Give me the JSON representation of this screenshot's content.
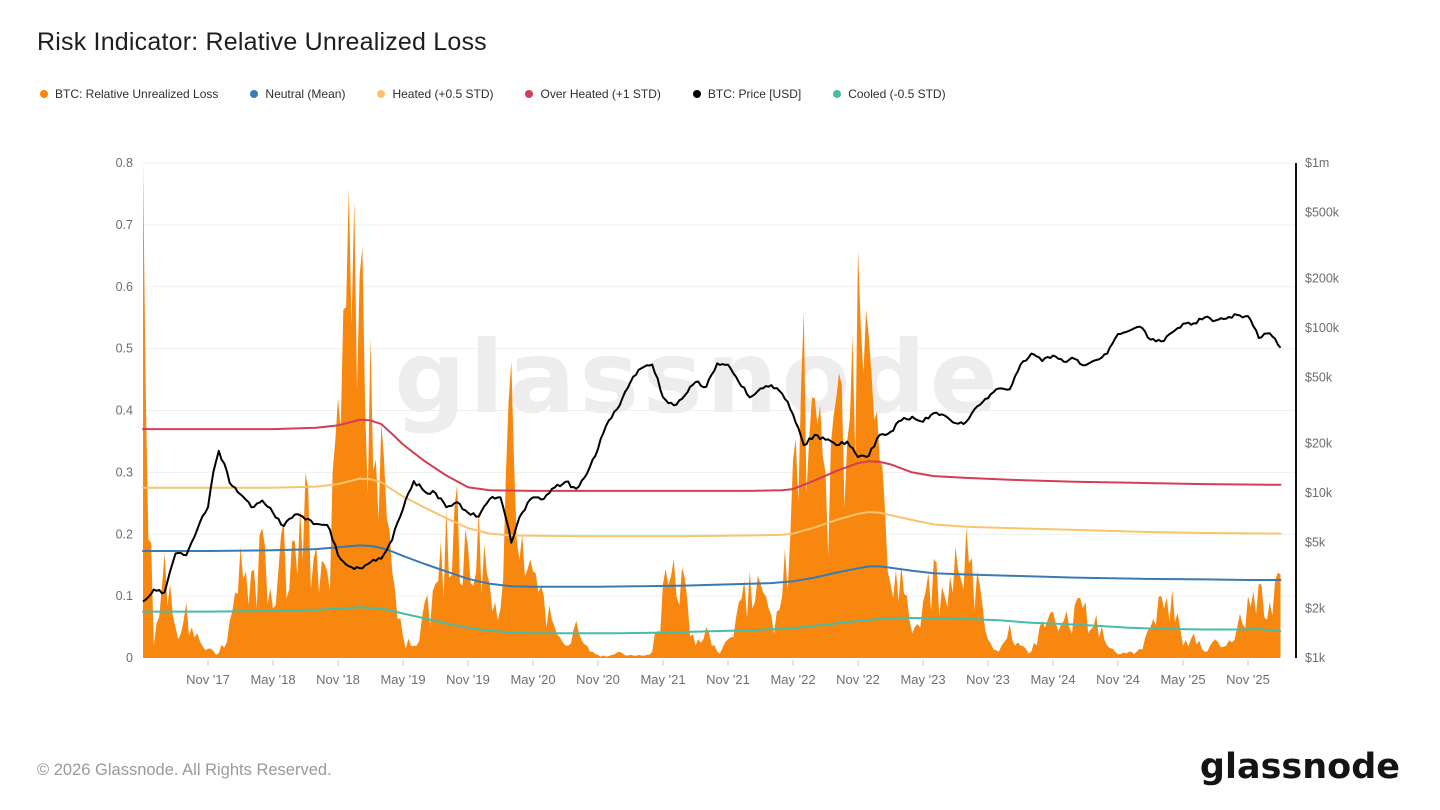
{
  "title": "Risk Indicator: Relative Unrealized Loss",
  "watermark": "glassnode",
  "footer": {
    "copyright": "© 2026 Glassnode. All Rights Reserved.",
    "brand": "glassnode"
  },
  "legend": [
    {
      "label": "BTC: Relative Unrealized Loss",
      "color": "#f7870e"
    },
    {
      "label": "Neutral (Mean)",
      "color": "#3a7ab2"
    },
    {
      "label": "Heated (+0.5 STD)",
      "color": "#f9c46d"
    },
    {
      "label": "Over Heated (+1 STD)",
      "color": "#d23e54"
    },
    {
      "label": "BTC: Price [USD]",
      "color": "#000000"
    },
    {
      "label": "Cooled (-0.5 STD)",
      "color": "#48bcab"
    }
  ],
  "chart_data": {
    "type": "area",
    "x_start": "2017-05",
    "x_step_months": 1,
    "x_points": 106,
    "x_tick_month_indices": [
      6,
      12,
      18,
      24,
      30,
      36,
      42,
      48,
      54,
      60,
      66,
      72,
      78,
      84,
      90,
      96,
      102
    ],
    "x_tick_labels": [
      "Nov '17",
      "May '18",
      "Nov '18",
      "May '19",
      "Nov '19",
      "May '20",
      "Nov '20",
      "May '21",
      "Nov '21",
      "May '22",
      "Nov '22",
      "May '23",
      "Nov '23",
      "May '24",
      "Nov '24",
      "May '25",
      "Nov '25"
    ],
    "left_axis": {
      "range": [
        0,
        0.8
      ],
      "ticks": [
        0,
        0.1,
        0.2,
        0.3,
        0.4,
        0.5,
        0.6,
        0.7,
        0.8
      ],
      "grid": true
    },
    "right_axis": {
      "scale": "log",
      "unit": "USD",
      "ticks": [
        {
          "label": "$1m",
          "k": 1000
        },
        {
          "label": "$500k",
          "k": 500
        },
        {
          "label": "$200k",
          "k": 200
        },
        {
          "label": "$100k",
          "k": 100
        },
        {
          "label": "$50k",
          "k": 50
        },
        {
          "label": "$20k",
          "k": 20
        },
        {
          "label": "$10k",
          "k": 10
        },
        {
          "label": "$5k",
          "k": 5
        },
        {
          "label": "$2k",
          "k": 2
        },
        {
          "label": "$1k",
          "k": 1
        }
      ]
    },
    "series": [
      {
        "name": "BTC: Relative Unrealized Loss",
        "role": "loss-area",
        "type": "area",
        "axis": "left",
        "color": "#f7870e",
        "values": [
          0.8,
          0.02,
          0.17,
          0.05,
          0.09,
          0.04,
          0.015,
          0.008,
          0.06,
          0.18,
          0.14,
          0.21,
          0.08,
          0.22,
          0.19,
          0.3,
          0.18,
          0.14,
          0.42,
          0.76,
          0.62,
          0.52,
          0.38,
          0.14,
          0.035,
          0.02,
          0.09,
          0.12,
          0.24,
          0.28,
          0.18,
          0.24,
          0.12,
          0.08,
          0.48,
          0.2,
          0.14,
          0.1,
          0.05,
          0.02,
          0.06,
          0.02,
          0.005,
          0.003,
          0.01,
          0.005,
          0.004,
          0.01,
          0.12,
          0.16,
          0.13,
          0.02,
          0.05,
          0.01,
          0.03,
          0.09,
          0.14,
          0.12,
          0.07,
          0.1,
          0.32,
          0.56,
          0.42,
          0.3,
          0.42,
          0.35,
          0.66,
          0.52,
          0.32,
          0.12,
          0.15,
          0.04,
          0.09,
          0.16,
          0.1,
          0.18,
          0.21,
          0.14,
          0.03,
          0.01,
          0.055,
          0.02,
          0.01,
          0.06,
          0.075,
          0.06,
          0.085,
          0.09,
          0.07,
          0.02,
          0.006,
          0.01,
          0.015,
          0.05,
          0.1,
          0.11,
          0.02,
          0.04,
          0.01,
          0.03,
          0.02,
          0.05,
          0.1,
          0.12,
          0.09,
          0.135
        ]
      },
      {
        "name": "Neutral (Mean)",
        "role": "neutral",
        "type": "line",
        "axis": "left",
        "color": "#3a7ab2",
        "points": [
          [
            0,
            0.173
          ],
          [
            6,
            0.173
          ],
          [
            12,
            0.174
          ],
          [
            16,
            0.176
          ],
          [
            18,
            0.179
          ],
          [
            20,
            0.182
          ],
          [
            21,
            0.181
          ],
          [
            22,
            0.178
          ],
          [
            23,
            0.172
          ],
          [
            24,
            0.165
          ],
          [
            26,
            0.152
          ],
          [
            28,
            0.14
          ],
          [
            30,
            0.128
          ],
          [
            32,
            0.12
          ],
          [
            34,
            0.116
          ],
          [
            36,
            0.115
          ],
          [
            42,
            0.115
          ],
          [
            46,
            0.116
          ],
          [
            50,
            0.117
          ],
          [
            54,
            0.119
          ],
          [
            58,
            0.121
          ],
          [
            60,
            0.124
          ],
          [
            62,
            0.13
          ],
          [
            64,
            0.138
          ],
          [
            66,
            0.145
          ],
          [
            67,
            0.148
          ],
          [
            68,
            0.148
          ],
          [
            69,
            0.146
          ],
          [
            71,
            0.141
          ],
          [
            73,
            0.137
          ],
          [
            76,
            0.135
          ],
          [
            80,
            0.133
          ],
          [
            86,
            0.13
          ],
          [
            92,
            0.128
          ],
          [
            98,
            0.127
          ],
          [
            102,
            0.126
          ],
          [
            105,
            0.126
          ]
        ]
      },
      {
        "name": "Heated (+0.5 STD)",
        "role": "heated",
        "type": "line",
        "axis": "left",
        "color": "#f9c46d",
        "points": [
          [
            0,
            0.275
          ],
          [
            6,
            0.275
          ],
          [
            12,
            0.275
          ],
          [
            16,
            0.277
          ],
          [
            18,
            0.281
          ],
          [
            20,
            0.29
          ],
          [
            21,
            0.289
          ],
          [
            22,
            0.284
          ],
          [
            23,
            0.272
          ],
          [
            24,
            0.261
          ],
          [
            26,
            0.243
          ],
          [
            28,
            0.226
          ],
          [
            30,
            0.21
          ],
          [
            32,
            0.201
          ],
          [
            34,
            0.198
          ],
          [
            40,
            0.197
          ],
          [
            50,
            0.197
          ],
          [
            56,
            0.198
          ],
          [
            59,
            0.199
          ],
          [
            60,
            0.201
          ],
          [
            62,
            0.211
          ],
          [
            64,
            0.223
          ],
          [
            66,
            0.233
          ],
          [
            67,
            0.236
          ],
          [
            68,
            0.235
          ],
          [
            69,
            0.231
          ],
          [
            71,
            0.223
          ],
          [
            73,
            0.216
          ],
          [
            76,
            0.212
          ],
          [
            80,
            0.21
          ],
          [
            86,
            0.207
          ],
          [
            92,
            0.204
          ],
          [
            98,
            0.202
          ],
          [
            105,
            0.201
          ]
        ]
      },
      {
        "name": "Over Heated (+1 STD)",
        "role": "overheated",
        "type": "line",
        "axis": "left",
        "color": "#d23e54",
        "points": [
          [
            0,
            0.37
          ],
          [
            6,
            0.37
          ],
          [
            12,
            0.37
          ],
          [
            16,
            0.372
          ],
          [
            18,
            0.376
          ],
          [
            20,
            0.385
          ],
          [
            21,
            0.384
          ],
          [
            22,
            0.378
          ],
          [
            23,
            0.362
          ],
          [
            24,
            0.345
          ],
          [
            26,
            0.318
          ],
          [
            28,
            0.295
          ],
          [
            30,
            0.276
          ],
          [
            32,
            0.271
          ],
          [
            36,
            0.27
          ],
          [
            48,
            0.27
          ],
          [
            56,
            0.27
          ],
          [
            59,
            0.271
          ],
          [
            60,
            0.273
          ],
          [
            62,
            0.287
          ],
          [
            64,
            0.302
          ],
          [
            66,
            0.315
          ],
          [
            67,
            0.318
          ],
          [
            68,
            0.317
          ],
          [
            69,
            0.313
          ],
          [
            71,
            0.3
          ],
          [
            73,
            0.294
          ],
          [
            76,
            0.291
          ],
          [
            80,
            0.288
          ],
          [
            86,
            0.285
          ],
          [
            92,
            0.283
          ],
          [
            98,
            0.281
          ],
          [
            105,
            0.28
          ]
        ]
      },
      {
        "name": "Cooled (-0.5 STD)",
        "role": "cooled",
        "type": "line",
        "axis": "left",
        "color": "#48bcab",
        "points": [
          [
            0,
            0.075
          ],
          [
            6,
            0.075
          ],
          [
            12,
            0.076
          ],
          [
            16,
            0.078
          ],
          [
            18,
            0.08
          ],
          [
            20,
            0.082
          ],
          [
            22,
            0.08
          ],
          [
            24,
            0.072
          ],
          [
            26,
            0.064
          ],
          [
            28,
            0.056
          ],
          [
            30,
            0.049
          ],
          [
            32,
            0.044
          ],
          [
            34,
            0.041
          ],
          [
            36,
            0.04
          ],
          [
            44,
            0.04
          ],
          [
            48,
            0.041
          ],
          [
            52,
            0.043
          ],
          [
            56,
            0.045
          ],
          [
            60,
            0.048
          ],
          [
            62,
            0.052
          ],
          [
            64,
            0.056
          ],
          [
            66,
            0.06
          ],
          [
            68,
            0.063
          ],
          [
            70,
            0.065
          ],
          [
            73,
            0.064
          ],
          [
            76,
            0.063
          ],
          [
            79,
            0.061
          ],
          [
            82,
            0.057
          ],
          [
            85,
            0.055
          ],
          [
            88,
            0.052
          ],
          [
            91,
            0.049
          ],
          [
            94,
            0.047
          ],
          [
            98,
            0.046
          ],
          [
            101,
            0.046
          ],
          [
            103,
            0.047
          ],
          [
            104,
            0.045
          ],
          [
            105,
            0.043
          ]
        ]
      },
      {
        "name": "BTC: Price [USD]",
        "role": "price",
        "type": "line",
        "axis": "right-log",
        "color": "#000000",
        "values_usd_k": [
          2.2,
          2.6,
          2.5,
          4.3,
          4.2,
          6.0,
          8.2,
          18.0,
          11.5,
          9.8,
          8.2,
          9.0,
          7.6,
          6.3,
          7.4,
          6.9,
          6.5,
          6.4,
          4.2,
          3.6,
          3.5,
          3.8,
          4.0,
          5.2,
          8.0,
          11.8,
          10.2,
          10.0,
          8.2,
          8.8,
          7.6,
          7.2,
          9.2,
          9.4,
          5.0,
          7.6,
          9.4,
          9.2,
          10.8,
          11.7,
          10.6,
          13.2,
          18.5,
          27.5,
          34,
          47,
          57,
          60,
          38,
          34,
          39,
          47,
          44,
          61,
          60,
          47,
          38,
          43,
          45,
          40,
          30,
          19.5,
          22.5,
          21,
          19.5,
          20.5,
          16.5,
          16.8,
          22.5,
          23.5,
          27.5,
          29,
          27,
          30.5,
          29.5,
          26.5,
          27,
          33.5,
          37.5,
          43,
          42.5,
          60,
          70,
          63,
          68,
          62.5,
          65,
          59.5,
          64,
          70,
          92,
          96,
          102,
          85,
          83,
          94,
          106,
          107,
          116,
          111,
          114,
          120,
          118,
          87,
          93,
          76
        ]
      }
    ]
  }
}
